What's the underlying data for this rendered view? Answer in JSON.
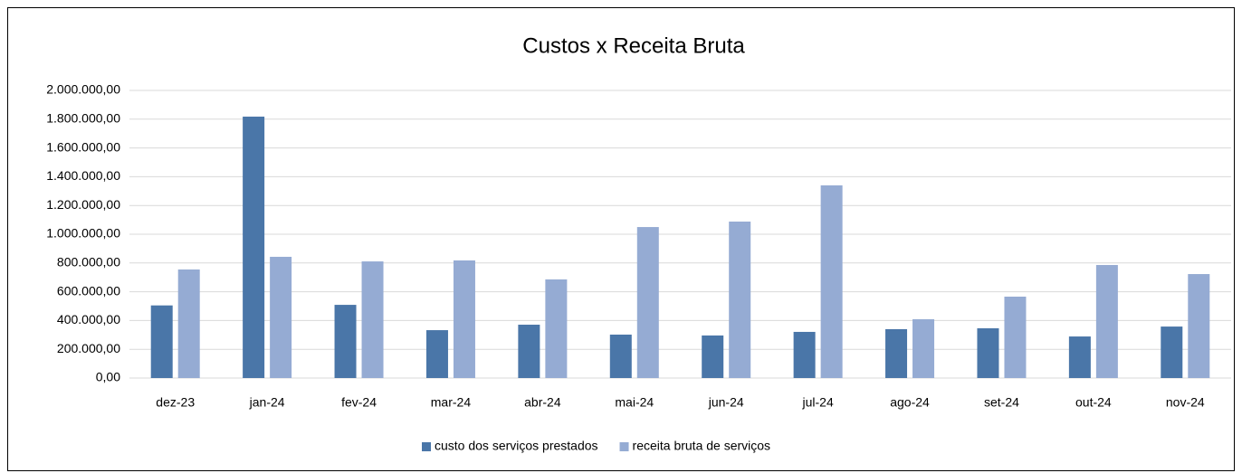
{
  "chart_data": {
    "type": "bar",
    "title": "Custos x Receita Bruta",
    "categories": [
      "dez-23",
      "jan-24",
      "fev-24",
      "mar-24",
      "abr-24",
      "mai-24",
      "jun-24",
      "jul-24",
      "ago-24",
      "set-24",
      "out-24",
      "nov-24"
    ],
    "series": [
      {
        "name": "custo dos serviços prestados",
        "color": "#4a76a8",
        "values": [
          505000,
          1818000,
          509000,
          333000,
          371000,
          302000,
          296000,
          321000,
          340000,
          346000,
          289000,
          358000
        ]
      },
      {
        "name": "receita bruta de serviços",
        "color": "#95abd3",
        "values": [
          755000,
          843000,
          811000,
          818000,
          686000,
          1050000,
          1088000,
          1340000,
          409000,
          566000,
          786000,
          723000
        ]
      }
    ],
    "ylim": [
      0,
      2000000
    ],
    "yticks": [
      {
        "value": 0,
        "label": "0,00"
      },
      {
        "value": 200000,
        "label": "200.000,00"
      },
      {
        "value": 400000,
        "label": "400.000,00"
      },
      {
        "value": 600000,
        "label": "600.000,00"
      },
      {
        "value": 800000,
        "label": "800.000,00"
      },
      {
        "value": 1000000,
        "label": "1.000.000,00"
      },
      {
        "value": 1200000,
        "label": "1.200.000,00"
      },
      {
        "value": 1400000,
        "label": "1.400.000,00"
      },
      {
        "value": 1600000,
        "label": "1.600.000,00"
      },
      {
        "value": 1800000,
        "label": "1.800.000,00"
      },
      {
        "value": 2000000,
        "label": "2.000.000,00"
      }
    ],
    "grid": true,
    "legend": "bottom"
  }
}
